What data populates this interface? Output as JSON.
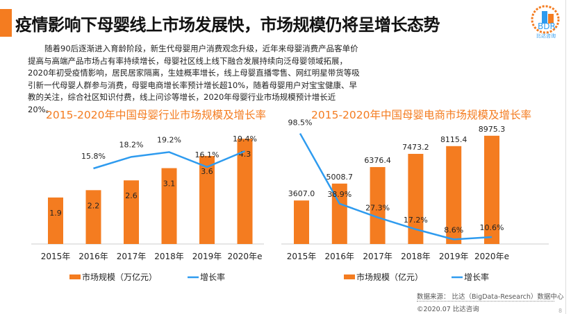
{
  "header": {
    "title": "疫情影响下母婴线上市场发展快，市场规模仍将呈增长态势",
    "logo_text": "BDR",
    "logo_sub": "比达咨询"
  },
  "paragraph": "随着90后逐渐进入育龄阶段，新生代母婴用户消费观念升级，近年来母婴消费产品客单价提高与高端产品市场占有率持续增长，母婴社区线上线下融合发展持续向泛母婴领域拓展，2020年初受疫情影响，居民居家隔离，生娃概率增长，线上母婴直播零售、网红明星带货等吸引新一代母婴人群参与消费，母婴电商增长率预计增长超10%，随着母婴用户对宝宝健康、早教的关注，综合社区知识付费，线上问诊等增长，2020年母婴行业市场规模预计增长近20%。",
  "colors": {
    "accent": "#f47c20",
    "bar": "#f47c20",
    "line": "#2e9bef"
  },
  "chart_data": [
    {
      "type": "bar+line",
      "title": "2015-2020年中国母婴行业市场规模及增长率",
      "categories": [
        "2015年",
        "2016年",
        "2017年",
        "2018年",
        "2019年",
        "2020年e"
      ],
      "series": [
        {
          "name": "市场规模（万亿元）",
          "type": "bar",
          "values": [
            1.9,
            2.2,
            2.6,
            3.1,
            3.6,
            4.3
          ]
        },
        {
          "name": "增长率",
          "type": "line",
          "values": [
            null,
            15.8,
            18.2,
            19.2,
            16.1,
            19.4
          ],
          "labels": [
            "",
            "15.8%",
            "18.2%",
            "19.2%",
            "16.1%",
            "19.4%"
          ]
        }
      ],
      "legend": "bottom"
    },
    {
      "type": "bar+line",
      "title": "2015-2020年中国母婴电商市场规模及增长率",
      "categories": [
        "2015年",
        "2016年",
        "2017年",
        "2018年",
        "2019年",
        "2020年e"
      ],
      "series": [
        {
          "name": "市场规模（亿元）",
          "type": "bar",
          "values": [
            3607.0,
            5008.7,
            6376.4,
            7473.2,
            8115.4,
            8975.3
          ],
          "labels": [
            "3607.0",
            "5008.7",
            "6376.4",
            "7473.2",
            "8115.4",
            "8975.3"
          ]
        },
        {
          "name": "增长率",
          "type": "line",
          "values": [
            98.5,
            38.9,
            27.3,
            17.2,
            8.6,
            10.6
          ],
          "labels": [
            "98.5%",
            "38.9%",
            "27.3%",
            "17.2%",
            "8.6%",
            "10.6%"
          ]
        }
      ],
      "legend": "bottom"
    }
  ],
  "footer": {
    "source": "数据来源： 比达（BigData-Research）数据中心",
    "copyright": "©2020.07  比达咨询",
    "page": "8"
  }
}
